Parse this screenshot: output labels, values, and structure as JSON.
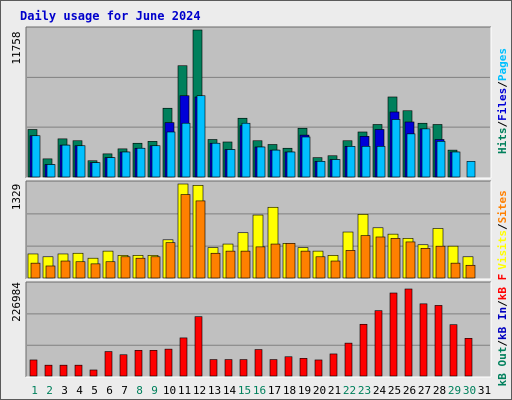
{
  "title": "Daily usage for June 2024",
  "colors": {
    "title": "#0000cc",
    "hits": "#00805c",
    "files": "#0000d8",
    "pages": "#00c0ff",
    "visits": "#ffff00",
    "sites": "#ff8000",
    "kbytes": "#ff0000",
    "kb_in": "#0000c0",
    "kb_out": "#00805c",
    "panel_bg": "#c0c0c0",
    "grid": "#808080",
    "weekend_day": "#00805c",
    "weekday": "#000000",
    "separator": "#000000"
  },
  "right_labels": {
    "top": [
      {
        "text": "Hits",
        "color": "hits"
      },
      {
        "text": "/",
        "color": "separator"
      },
      {
        "text": "Files",
        "color": "files"
      },
      {
        "text": "/",
        "color": "separator"
      },
      {
        "text": "Pages",
        "color": "pages"
      }
    ],
    "middle": [
      {
        "text": "Visits",
        "color": "visits"
      },
      {
        "text": "/",
        "color": "separator"
      },
      {
        "text": "Sites",
        "color": "sites"
      }
    ],
    "bottom": [
      {
        "text": "kB Out",
        "color": "kb_out"
      },
      {
        "text": "/",
        "color": "separator"
      },
      {
        "text": "kB In",
        "color": "kb_in"
      },
      {
        "text": "/",
        "color": "separator"
      },
      {
        "text": "kB F",
        "color": "kbytes"
      }
    ]
  },
  "chart_data": [
    {
      "type": "bar",
      "panel": "hits-files-pages",
      "ymax": 11758,
      "ytick_label": "11758",
      "categories": [
        "1",
        "2",
        "3",
        "4",
        "5",
        "6",
        "7",
        "8",
        "9",
        "10",
        "11",
        "12",
        "13",
        "14",
        "15",
        "16",
        "17",
        "18",
        "19",
        "20",
        "21",
        "22",
        "23",
        "24",
        "25",
        "26",
        "27",
        "28",
        "29",
        "30",
        "31"
      ],
      "series": [
        {
          "name": "Hits",
          "color": "hits",
          "values": [
            3800,
            1450,
            3050,
            2900,
            1300,
            1850,
            2250,
            2700,
            2850,
            5500,
            8900,
            11758,
            3000,
            2800,
            4700,
            2900,
            2600,
            2300,
            3900,
            1550,
            1700,
            2900,
            3600,
            4200,
            6400,
            5300,
            4300,
            4200,
            2150,
            0,
            0
          ]
        },
        {
          "name": "Files",
          "color": "files",
          "values": [
            3300,
            1000,
            2550,
            2500,
            1150,
            1550,
            2000,
            2300,
            2500,
            4350,
            6500,
            6400,
            2700,
            2200,
            4100,
            2400,
            2150,
            2000,
            3350,
            1250,
            1400,
            2450,
            3250,
            3800,
            5200,
            4400,
            3850,
            3000,
            2000,
            0,
            0
          ]
        },
        {
          "name": "Pages",
          "color": "pages",
          "values": [
            3300,
            1000,
            2550,
            2500,
            1150,
            1550,
            2000,
            2300,
            2500,
            3600,
            4300,
            6500,
            2700,
            2200,
            4300,
            2400,
            2150,
            2000,
            3200,
            1250,
            1400,
            2450,
            2450,
            2450,
            4600,
            3450,
            3850,
            2850,
            2000,
            1250,
            0
          ]
        }
      ]
    },
    {
      "type": "bar",
      "panel": "visits-sites",
      "ymax": 1329,
      "ytick_label": "1329",
      "categories": [
        "1",
        "2",
        "3",
        "4",
        "5",
        "6",
        "7",
        "8",
        "9",
        "10",
        "11",
        "12",
        "13",
        "14",
        "15",
        "16",
        "17",
        "18",
        "19",
        "20",
        "21",
        "22",
        "23",
        "24",
        "25",
        "26",
        "27",
        "28",
        "29",
        "30",
        "31"
      ],
      "series": [
        {
          "name": "Visits",
          "color": "visits",
          "values": [
            340,
            300,
            340,
            350,
            280,
            380,
            320,
            320,
            320,
            540,
            1329,
            1310,
            430,
            480,
            640,
            890,
            1000,
            490,
            430,
            380,
            320,
            650,
            900,
            710,
            620,
            560,
            470,
            700,
            450,
            300,
            0
          ]
        },
        {
          "name": "Sites",
          "color": "sites",
          "values": [
            210,
            170,
            240,
            230,
            200,
            230,
            300,
            280,
            300,
            500,
            1180,
            1090,
            350,
            380,
            380,
            440,
            480,
            490,
            380,
            300,
            240,
            390,
            600,
            580,
            560,
            510,
            420,
            450,
            210,
            180,
            0
          ]
        }
      ]
    },
    {
      "type": "bar",
      "panel": "kbytes",
      "ymax": 226984,
      "ytick_label": "226984",
      "categories": [
        "1",
        "2",
        "3",
        "4",
        "5",
        "6",
        "7",
        "8",
        "9",
        "10",
        "11",
        "12",
        "13",
        "14",
        "15",
        "16",
        "17",
        "18",
        "19",
        "20",
        "21",
        "22",
        "23",
        "24",
        "25",
        "26",
        "27",
        "28",
        "29",
        "30",
        "31"
      ],
      "series": [
        {
          "name": "kB F",
          "color": "kbytes",
          "values": [
            40000,
            27000,
            27000,
            27000,
            15000,
            61000,
            53000,
            64000,
            64000,
            67000,
            95000,
            148000,
            41000,
            41000,
            41000,
            66000,
            41000,
            48000,
            44000,
            40000,
            55000,
            82000,
            129000,
            163000,
            207000,
            217000,
            180000,
            176000,
            128000,
            94000,
            0
          ]
        }
      ]
    }
  ],
  "x_days": [
    {
      "label": "1",
      "weekend": true
    },
    {
      "label": "2",
      "weekend": true
    },
    {
      "label": "3",
      "weekend": false
    },
    {
      "label": "4",
      "weekend": false
    },
    {
      "label": "5",
      "weekend": false
    },
    {
      "label": "6",
      "weekend": false
    },
    {
      "label": "7",
      "weekend": false
    },
    {
      "label": "8",
      "weekend": true
    },
    {
      "label": "9",
      "weekend": true
    },
    {
      "label": "10",
      "weekend": false
    },
    {
      "label": "11",
      "weekend": false
    },
    {
      "label": "12",
      "weekend": false
    },
    {
      "label": "13",
      "weekend": false
    },
    {
      "label": "14",
      "weekend": false
    },
    {
      "label": "15",
      "weekend": true
    },
    {
      "label": "16",
      "weekend": true
    },
    {
      "label": "17",
      "weekend": false
    },
    {
      "label": "18",
      "weekend": false
    },
    {
      "label": "19",
      "weekend": false
    },
    {
      "label": "20",
      "weekend": false
    },
    {
      "label": "21",
      "weekend": false
    },
    {
      "label": "22",
      "weekend": true
    },
    {
      "label": "23",
      "weekend": true
    },
    {
      "label": "24",
      "weekend": false
    },
    {
      "label": "25",
      "weekend": false
    },
    {
      "label": "26",
      "weekend": false
    },
    {
      "label": "27",
      "weekend": false
    },
    {
      "label": "28",
      "weekend": false
    },
    {
      "label": "29",
      "weekend": true
    },
    {
      "label": "30",
      "weekend": true
    },
    {
      "label": "31",
      "weekend": false
    }
  ]
}
